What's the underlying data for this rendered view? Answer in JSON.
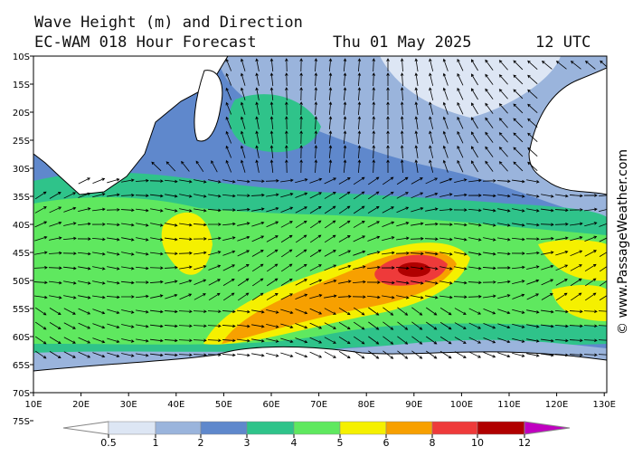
{
  "header": {
    "title": "Wave Height (m) and Direction",
    "subtitle": "EC-WAM 018 Hour Forecast",
    "date": "Thu 01 May 2025",
    "time": "12 UTC"
  },
  "map": {
    "lat_labels": [
      "10S",
      "15S",
      "20S",
      "25S",
      "30S",
      "35S",
      "40S",
      "45S",
      "50S",
      "55S",
      "60S",
      "65S",
      "70S",
      "75S"
    ],
    "lon_labels": [
      "10E",
      "20E",
      "30E",
      "40E",
      "50E",
      "60E",
      "70E",
      "80E",
      "90E",
      "100E",
      "110E",
      "120E",
      "130E"
    ]
  },
  "legend": {
    "labels": [
      "0.5",
      "1",
      "2",
      "3",
      "4",
      "5",
      "6",
      "8",
      "10",
      "12"
    ],
    "colors": [
      "#ffffff",
      "#dde6f4",
      "#9ab4dc",
      "#5f88cc",
      "#2fc38a",
      "#5fe85f",
      "#f5f000",
      "#f7a000",
      "#ee3a3a",
      "#b00000",
      "#c000c0"
    ]
  },
  "credit": "© www.PassageWeather.com"
}
